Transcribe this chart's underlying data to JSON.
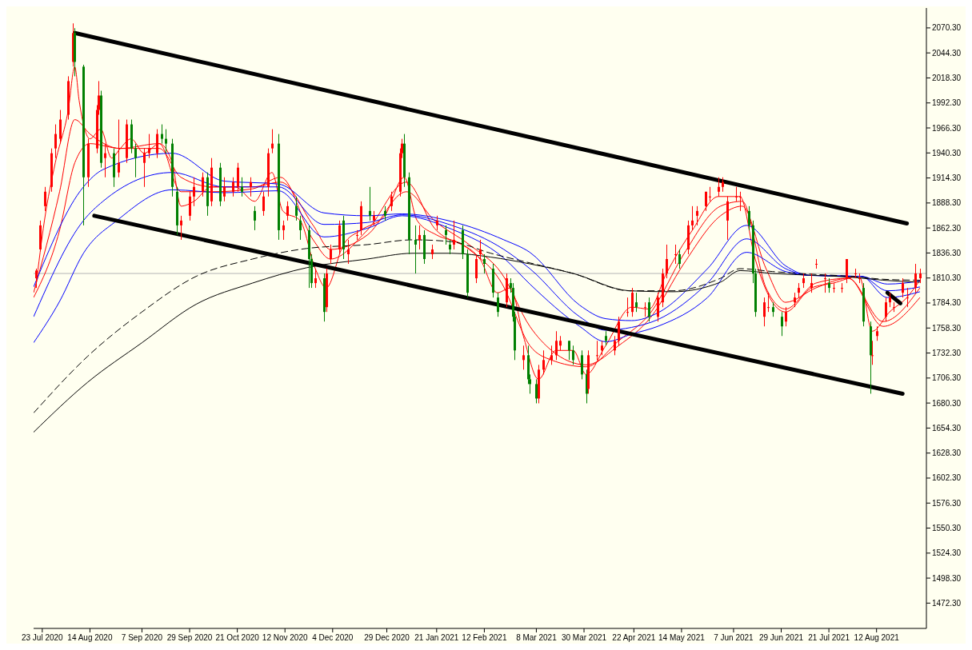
{
  "chart_data": {
    "type": "candlestick",
    "x": [
      "2020-07-20",
      "2020-07-22",
      "2020-07-24",
      "2020-07-27",
      "2020-07-29",
      "2020-07-31",
      "2020-08-04",
      "2020-08-06",
      "2020-08-07",
      "2020-08-11",
      "2020-08-13",
      "2020-08-17",
      "2020-08-18",
      "2020-08-19",
      "2020-08-21",
      "2020-08-25",
      "2020-08-27",
      "2020-08-31",
      "2020-09-02",
      "2020-09-04",
      "2020-09-08",
      "2020-09-10",
      "2020-09-14",
      "2020-09-16",
      "2020-09-18",
      "2020-09-21",
      "2020-09-23",
      "2020-09-25",
      "2020-09-29",
      "2020-10-01",
      "2020-10-05",
      "2020-10-07",
      "2020-10-09",
      "2020-10-13",
      "2020-10-15",
      "2020-10-19",
      "2020-10-21",
      "2020-10-23",
      "2020-10-27",
      "2020-10-29",
      "2020-11-02",
      "2020-11-04",
      "2020-11-06",
      "2020-11-09",
      "2020-11-11",
      "2020-11-13",
      "2020-11-17",
      "2020-11-19",
      "2020-11-23",
      "2020-11-24",
      "2020-11-26",
      "2020-11-30",
      "2020-12-01",
      "2020-12-03",
      "2020-12-07",
      "2020-12-09",
      "2020-12-11",
      "2020-12-15",
      "2020-12-17",
      "2020-12-21",
      "2020-12-23",
      "2020-12-28",
      "2020-12-31",
      "2021-01-04",
      "2021-01-05",
      "2021-01-06",
      "2021-01-08",
      "2021-01-11",
      "2021-01-13",
      "2021-01-15",
      "2021-01-19",
      "2021-01-21",
      "2021-01-25",
      "2021-01-27",
      "2021-01-29",
      "2021-02-02",
      "2021-02-04",
      "2021-02-08",
      "2021-02-10",
      "2021-02-12",
      "2021-02-16",
      "2021-02-18",
      "2021-02-22",
      "2021-02-24",
      "2021-02-25",
      "2021-02-26",
      "2021-03-02",
      "2021-03-04",
      "2021-03-05",
      "2021-03-08",
      "2021-03-09",
      "2021-03-11",
      "2021-03-15",
      "2021-03-17",
      "2021-03-19",
      "2021-03-23",
      "2021-03-25",
      "2021-03-29",
      "2021-03-31",
      "2021-04-01",
      "2021-04-05",
      "2021-04-07",
      "2021-04-09",
      "2021-04-13",
      "2021-04-15",
      "2021-04-19",
      "2021-04-21",
      "2021-04-23",
      "2021-04-27",
      "2021-04-29",
      "2021-05-03",
      "2021-05-05",
      "2021-05-07",
      "2021-05-11",
      "2021-05-13",
      "2021-05-17",
      "2021-05-19",
      "2021-05-21",
      "2021-05-25",
      "2021-05-27",
      "2021-05-31",
      "2021-06-02",
      "2021-06-04",
      "2021-06-08",
      "2021-06-10",
      "2021-06-14",
      "2021-06-16",
      "2021-06-17",
      "2021-06-21",
      "2021-06-23",
      "2021-06-25",
      "2021-06-29",
      "2021-07-01",
      "2021-07-05",
      "2021-07-07",
      "2021-07-09",
      "2021-07-13",
      "2021-07-15",
      "2021-07-19",
      "2021-07-21",
      "2021-07-23",
      "2021-07-27",
      "2021-07-29",
      "2021-08-02",
      "2021-08-04",
      "2021-08-06",
      "2021-08-09",
      "2021-08-10",
      "2021-08-12",
      "2021-08-16",
      "2021-08-18",
      "2021-08-20",
      "2021-08-24",
      "2021-08-26",
      "2021-08-30",
      "2021-09-01"
    ],
    "ohlc": [
      [
        1810,
        1820,
        1800,
        1818
      ],
      [
        1840,
        1870,
        1838,
        1865
      ],
      [
        1885,
        1905,
        1880,
        1900
      ],
      [
        1905,
        1945,
        1900,
        1940
      ],
      [
        1945,
        1970,
        1935,
        1960
      ],
      [
        1955,
        1985,
        1950,
        1975
      ],
      [
        1980,
        2020,
        1975,
        2015
      ],
      [
        2035,
        2075,
        2030,
        2065
      ],
      [
        2065,
        2070,
        2020,
        2035
      ],
      [
        2030,
        2032,
        1865,
        1915
      ],
      [
        1915,
        1955,
        1905,
        1950
      ],
      [
        1945,
        1990,
        1940,
        1985
      ],
      [
        1985,
        2015,
        1980,
        2000
      ],
      [
        2000,
        2005,
        1925,
        1930
      ],
      [
        1935,
        1950,
        1915,
        1940
      ],
      [
        1940,
        1945,
        1905,
        1915
      ],
      [
        1920,
        1975,
        1915,
        1930
      ],
      [
        1935,
        1975,
        1930,
        1970
      ],
      [
        1970,
        1975,
        1940,
        1945
      ],
      [
        1945,
        1950,
        1915,
        1935
      ],
      [
        1930,
        1945,
        1905,
        1940
      ],
      [
        1940,
        1960,
        1935,
        1945
      ],
      [
        1940,
        1965,
        1935,
        1960
      ],
      [
        1960,
        1970,
        1950,
        1955
      ],
      [
        1955,
        1965,
        1940,
        1950
      ],
      [
        1950,
        1955,
        1895,
        1905
      ],
      [
        1900,
        1905,
        1855,
        1865
      ],
      [
        1865,
        1875,
        1850,
        1870
      ],
      [
        1875,
        1900,
        1870,
        1895
      ],
      [
        1895,
        1915,
        1885,
        1905
      ],
      [
        1900,
        1920,
        1895,
        1915
      ],
      [
        1915,
        1920,
        1875,
        1885
      ],
      [
        1890,
        1935,
        1885,
        1925
      ],
      [
        1925,
        1930,
        1885,
        1890
      ],
      [
        1895,
        1915,
        1890,
        1905
      ],
      [
        1900,
        1915,
        1895,
        1910
      ],
      [
        1905,
        1930,
        1900,
        1925
      ],
      [
        1905,
        1915,
        1895,
        1900
      ],
      [
        1905,
        1915,
        1895,
        1910
      ],
      [
        1880,
        1885,
        1860,
        1870
      ],
      [
        1880,
        1900,
        1875,
        1895
      ],
      [
        1905,
        1945,
        1895,
        1940
      ],
      [
        1945,
        1965,
        1940,
        1950
      ],
      [
        1950,
        1960,
        1850,
        1860
      ],
      [
        1860,
        1870,
        1850,
        1865
      ],
      [
        1875,
        1890,
        1870,
        1885
      ],
      [
        1885,
        1895,
        1870,
        1875
      ],
      [
        1870,
        1875,
        1850,
        1860
      ],
      [
        1860,
        1865,
        1800,
        1830
      ],
      [
        1830,
        1835,
        1800,
        1805
      ],
      [
        1805,
        1820,
        1800,
        1810
      ],
      [
        1810,
        1815,
        1765,
        1775
      ],
      [
        1780,
        1820,
        1775,
        1815
      ],
      [
        1830,
        1845,
        1825,
        1840
      ],
      [
        1840,
        1870,
        1835,
        1865
      ],
      [
        1870,
        1875,
        1830,
        1840
      ],
      [
        1835,
        1850,
        1825,
        1840
      ],
      [
        1855,
        1860,
        1850,
        1855
      ],
      [
        1860,
        1890,
        1855,
        1885
      ],
      [
        1880,
        1905,
        1870,
        1875
      ],
      [
        1870,
        1880,
        1865,
        1875
      ],
      [
        1880,
        1885,
        1870,
        1875
      ],
      [
        1885,
        1900,
        1880,
        1895
      ],
      [
        1900,
        1945,
        1895,
        1940
      ],
      [
        1940,
        1955,
        1935,
        1950
      ],
      [
        1950,
        1960,
        1905,
        1915
      ],
      [
        1915,
        1920,
        1835,
        1850
      ],
      [
        1850,
        1865,
        1815,
        1845
      ],
      [
        1850,
        1865,
        1840,
        1855
      ],
      [
        1855,
        1860,
        1825,
        1830
      ],
      [
        1835,
        1845,
        1830,
        1840
      ],
      [
        1865,
        1875,
        1860,
        1870
      ],
      [
        1860,
        1865,
        1845,
        1855
      ],
      [
        1845,
        1850,
        1835,
        1840
      ],
      [
        1845,
        1870,
        1840,
        1850
      ],
      [
        1860,
        1865,
        1830,
        1835
      ],
      [
        1835,
        1840,
        1790,
        1795
      ],
      [
        1810,
        1835,
        1805,
        1830
      ],
      [
        1835,
        1850,
        1830,
        1840
      ],
      [
        1830,
        1835,
        1815,
        1825
      ],
      [
        1820,
        1825,
        1790,
        1795
      ],
      [
        1790,
        1795,
        1770,
        1775
      ],
      [
        1785,
        1815,
        1780,
        1810
      ],
      [
        1805,
        1810,
        1795,
        1800
      ],
      [
        1800,
        1805,
        1765,
        1770
      ],
      [
        1770,
        1775,
        1725,
        1735
      ],
      [
        1725,
        1740,
        1715,
        1730
      ],
      [
        1730,
        1740,
        1700,
        1705
      ],
      [
        1705,
        1710,
        1690,
        1700
      ],
      [
        1700,
        1705,
        1680,
        1685
      ],
      [
        1685,
        1720,
        1680,
        1715
      ],
      [
        1715,
        1735,
        1710,
        1725
      ],
      [
        1725,
        1740,
        1720,
        1730
      ],
      [
        1730,
        1755,
        1725,
        1745
      ],
      [
        1740,
        1750,
        1735,
        1745
      ],
      [
        1745,
        1745,
        1725,
        1735
      ],
      [
        1735,
        1740,
        1720,
        1725
      ],
      [
        1730,
        1735,
        1705,
        1710
      ],
      [
        1710,
        1715,
        1680,
        1690
      ],
      [
        1695,
        1735,
        1690,
        1730
      ],
      [
        1730,
        1745,
        1725,
        1730
      ],
      [
        1735,
        1745,
        1730,
        1740
      ],
      [
        1750,
        1755,
        1740,
        1745
      ],
      [
        1735,
        1750,
        1730,
        1745
      ],
      [
        1745,
        1770,
        1740,
        1765
      ],
      [
        1775,
        1790,
        1770,
        1775
      ],
      [
        1775,
        1800,
        1770,
        1795
      ],
      [
        1785,
        1795,
        1775,
        1780
      ],
      [
        1780,
        1785,
        1770,
        1780
      ],
      [
        1785,
        1790,
        1765,
        1770
      ],
      [
        1770,
        1795,
        1765,
        1790
      ],
      [
        1785,
        1820,
        1780,
        1815
      ],
      [
        1815,
        1845,
        1810,
        1830
      ],
      [
        1835,
        1845,
        1825,
        1835
      ],
      [
        1835,
        1840,
        1820,
        1825
      ],
      [
        1840,
        1870,
        1835,
        1865
      ],
      [
        1865,
        1885,
        1860,
        1870
      ],
      [
        1875,
        1885,
        1865,
        1880
      ],
      [
        1885,
        1900,
        1880,
        1900
      ],
      [
        1895,
        1905,
        1890,
        1895
      ],
      [
        1900,
        1915,
        1895,
        1905
      ],
      [
        1905,
        1915,
        1900,
        1910
      ],
      [
        1870,
        1895,
        1850,
        1890
      ],
      [
        1895,
        1905,
        1890,
        1895
      ],
      [
        1895,
        1900,
        1880,
        1895
      ],
      [
        1880,
        1885,
        1860,
        1865
      ],
      [
        1865,
        1870,
        1805,
        1815
      ],
      [
        1815,
        1820,
        1770,
        1775
      ],
      [
        1770,
        1790,
        1760,
        1785
      ],
      [
        1780,
        1795,
        1775,
        1780
      ],
      [
        1780,
        1785,
        1770,
        1775
      ],
      [
        1770,
        1775,
        1750,
        1760
      ],
      [
        1765,
        1780,
        1760,
        1775
      ],
      [
        1785,
        1795,
        1780,
        1790
      ],
      [
        1795,
        1805,
        1790,
        1800
      ],
      [
        1805,
        1815,
        1800,
        1810
      ],
      [
        1800,
        1815,
        1795,
        1805
      ],
      [
        1825,
        1830,
        1820,
        1825
      ],
      [
        1810,
        1815,
        1795,
        1810
      ],
      [
        1805,
        1810,
        1795,
        1800
      ],
      [
        1800,
        1805,
        1795,
        1800
      ],
      [
        1800,
        1805,
        1795,
        1800
      ],
      [
        1810,
        1830,
        1805,
        1830
      ],
      [
        1815,
        1820,
        1810,
        1815
      ],
      [
        1810,
        1815,
        1805,
        1810
      ],
      [
        1800,
        1805,
        1760,
        1765
      ],
      [
        1760,
        1765,
        1690,
        1730
      ],
      [
        1730,
        1745,
        1720,
        1730
      ],
      [
        1750,
        1760,
        1745,
        1755
      ],
      [
        1770,
        1790,
        1765,
        1785
      ],
      [
        1785,
        1795,
        1780,
        1790
      ],
      [
        1780,
        1785,
        1775,
        1780
      ],
      [
        1795,
        1810,
        1790,
        1805
      ],
      [
        1790,
        1800,
        1780,
        1790
      ],
      [
        1800,
        1825,
        1795,
        1815
      ],
      [
        1810,
        1820,
        1805,
        1815
      ]
    ],
    "colors": [
      "#ff0000",
      "#ff0000",
      "#ff0000",
      "#ff0000",
      "#ff0000",
      "#ff0000",
      "#ff0000",
      "#ff0000",
      "#008000",
      "#008000",
      "#ff0000",
      "#ff0000",
      "#ff0000",
      "#008000",
      "#ff0000",
      "#008000",
      "#ff0000",
      "#ff0000",
      "#008000",
      "#008000",
      "#ff0000",
      "#ff0000",
      "#ff0000",
      "#008000",
      "#008000",
      "#008000",
      "#008000",
      "#ff0000",
      "#ff0000",
      "#ff0000",
      "#ff0000",
      "#008000",
      "#ff0000",
      "#008000",
      "#ff0000",
      "#ff0000",
      "#ff0000",
      "#008000",
      "#ff0000",
      "#008000",
      "#ff0000",
      "#ff0000",
      "#ff0000",
      "#008000",
      "#ff0000",
      "#ff0000",
      "#008000",
      "#008000",
      "#008000",
      "#008000",
      "#ff0000",
      "#008000",
      "#ff0000",
      "#ff0000",
      "#ff0000",
      "#008000",
      "#ff0000",
      "#ff0000",
      "#ff0000",
      "#008000",
      "#ff0000",
      "#008000",
      "#ff0000",
      "#ff0000",
      "#ff0000",
      "#008000",
      "#008000",
      "#008000",
      "#ff0000",
      "#008000",
      "#ff0000",
      "#ff0000",
      "#008000",
      "#008000",
      "#ff0000",
      "#008000",
      "#008000",
      "#ff0000",
      "#ff0000",
      "#008000",
      "#008000",
      "#008000",
      "#ff0000",
      "#008000",
      "#008000",
      "#008000",
      "#ff0000",
      "#008000",
      "#008000",
      "#008000",
      "#ff0000",
      "#ff0000",
      "#ff0000",
      "#ff0000",
      "#ff0000",
      "#008000",
      "#008000",
      "#008000",
      "#008000",
      "#ff0000",
      "#ff0000",
      "#ff0000",
      "#008000",
      "#ff0000",
      "#ff0000",
      "#ff0000",
      "#ff0000",
      "#008000",
      "#ff0000",
      "#008000",
      "#ff0000",
      "#ff0000",
      "#ff0000",
      "#ff0000",
      "#008000",
      "#ff0000",
      "#ff0000",
      "#ff0000",
      "#ff0000",
      "#ff0000",
      "#ff0000",
      "#ff0000",
      "#ff0000",
      "#ff0000",
      "#ff0000",
      "#008000",
      "#008000",
      "#008000",
      "#ff0000",
      "#ff0000",
      "#008000",
      "#008000",
      "#ff0000",
      "#ff0000",
      "#ff0000",
      "#ff0000",
      "#ff0000",
      "#ff0000",
      "#ff0000",
      "#008000",
      "#ff0000",
      "#ff0000",
      "#ff0000",
      "#ff0000",
      "#ff0000",
      "#008000",
      "#008000",
      "#ff0000",
      "#ff0000",
      "#ff0000",
      "#ff0000",
      "#ff0000",
      "#ff0000",
      "#ff0000",
      "#ff0000",
      "#ff0000"
    ],
    "series": [
      {
        "type": "line",
        "color": "#ff0000",
        "x": [
          "2020-07-20",
          "2020-07-24",
          "2020-07-29",
          "2020-08-04",
          "2020-08-07",
          "2020-08-09",
          "2020-08-14",
          "2020-08-19",
          "2020-08-24",
          "2020-08-28",
          "2020-09-02",
          "2020-09-08",
          "2020-09-15",
          "2020-09-21",
          "2020-09-25",
          "2020-10-01",
          "2020-10-09",
          "2020-10-20",
          "2020-10-29",
          "2020-11-06",
          "2020-11-11",
          "2020-11-19",
          "2020-11-26",
          "2020-12-01",
          "2020-12-09",
          "2020-12-17",
          "2020-12-28",
          "2021-01-06",
          "2021-01-12",
          "2021-01-21",
          "2021-02-02",
          "2021-02-10",
          "2021-02-18",
          "2021-02-24",
          "2021-03-02",
          "2021-03-09",
          "2021-03-17",
          "2021-03-25",
          "2021-03-31",
          "2021-04-09",
          "2021-04-21",
          "2021-04-29",
          "2021-05-07",
          "2021-05-19",
          "2021-05-31",
          "2021-06-10",
          "2021-06-17",
          "2021-06-25",
          "2021-07-01",
          "2021-07-13",
          "2021-07-23",
          "2021-08-04",
          "2021-08-10",
          "2021-08-18",
          "2021-08-26",
          "2021-09-01"
        ],
        "values": [
          1800,
          1870,
          1930,
          1985,
          2030,
          1995,
          1955,
          1965,
          1935,
          1945,
          1955,
          1940,
          1950,
          1930,
          1885,
          1890,
          1905,
          1905,
          1890,
          1920,
          1880,
          1870,
          1820,
          1800,
          1845,
          1860,
          1875,
          1915,
          1870,
          1855,
          1845,
          1830,
          1795,
          1800,
          1750,
          1705,
          1735,
          1735,
          1710,
          1740,
          1780,
          1778,
          1815,
          1860,
          1895,
          1895,
          1830,
          1785,
          1775,
          1800,
          1805,
          1812,
          1755,
          1775,
          1790,
          1808
        ]
      },
      {
        "type": "line",
        "color": "#ff0000",
        "x": [
          "2020-07-19",
          "2020-07-31",
          "2020-08-07",
          "2020-08-14",
          "2020-08-28",
          "2020-09-15",
          "2020-09-25",
          "2020-10-10",
          "2020-10-28",
          "2020-11-10",
          "2020-11-25",
          "2020-12-03",
          "2020-12-20",
          "2021-01-07",
          "2021-01-20",
          "2021-02-05",
          "2021-02-20",
          "2021-03-05",
          "2021-03-15",
          "2021-03-31",
          "2021-04-15",
          "2021-04-30",
          "2021-05-15",
          "2021-06-01",
          "2021-06-11",
          "2021-06-22",
          "2021-07-01",
          "2021-07-15",
          "2021-07-30",
          "2021-08-15",
          "2021-09-01"
        ],
        "values": [
          1795,
          1900,
          1975,
          1960,
          1945,
          1950,
          1900,
          1900,
          1903,
          1915,
          1850,
          1830,
          1860,
          1910,
          1862,
          1840,
          1805,
          1740,
          1725,
          1718,
          1745,
          1775,
          1835,
          1885,
          1890,
          1800,
          1778,
          1805,
          1810,
          1765,
          1800
        ]
      },
      {
        "type": "line",
        "color": "#ff0000",
        "x": [
          "2020-07-19",
          "2020-07-31",
          "2020-08-07",
          "2020-08-14",
          "2020-08-28",
          "2020-09-15",
          "2020-09-25",
          "2020-10-10",
          "2020-10-28",
          "2020-11-10",
          "2020-11-25",
          "2020-12-03",
          "2020-12-20",
          "2021-01-07",
          "2021-01-20",
          "2021-02-05",
          "2021-02-20",
          "2021-03-05",
          "2021-03-15",
          "2021-03-31",
          "2021-04-15",
          "2021-04-30",
          "2021-05-15",
          "2021-06-01",
          "2021-06-11",
          "2021-06-22",
          "2021-07-01",
          "2021-07-15",
          "2021-07-30",
          "2021-08-15",
          "2021-09-01"
        ],
        "values": [
          1790,
          1860,
          1930,
          1950,
          1945,
          1945,
          1915,
          1905,
          1905,
          1910,
          1865,
          1840,
          1855,
          1900,
          1870,
          1845,
          1815,
          1760,
          1735,
          1720,
          1740,
          1770,
          1825,
          1875,
          1885,
          1820,
          1785,
          1800,
          1810,
          1760,
          1790
        ]
      },
      {
        "type": "line",
        "color": "#0000ff",
        "x": [
          "2020-07-19",
          "2020-08-11",
          "2020-08-20",
          "2020-09-21",
          "2020-10-15",
          "2020-11-09",
          "2020-11-30",
          "2020-12-20",
          "2021-01-05",
          "2021-01-28",
          "2021-02-21",
          "2021-03-05",
          "2021-03-28",
          "2021-04-09",
          "2021-04-21",
          "2021-05-03",
          "2021-05-26",
          "2021-06-13",
          "2021-07-01",
          "2021-07-12",
          "2021-08-05",
          "2021-08-17",
          "2021-09-01"
        ],
        "values": [
          1801,
          1905,
          1923,
          1940,
          1911,
          1908,
          1878,
          1875,
          1877,
          1869,
          1850,
          1837,
          1782,
          1768,
          1766,
          1774,
          1820,
          1865,
          1823,
          1813,
          1812,
          1804,
          1807
        ]
      },
      {
        "type": "line",
        "color": "#0000ff",
        "x": [
          "2020-07-19",
          "2020-08-11",
          "2020-08-20",
          "2020-09-21",
          "2020-10-15",
          "2020-11-09",
          "2020-11-30",
          "2020-12-20",
          "2021-01-05",
          "2021-01-28",
          "2021-02-21",
          "2021-03-05",
          "2021-03-28",
          "2021-04-09",
          "2021-04-21",
          "2021-05-03",
          "2021-05-26",
          "2021-06-13",
          "2021-07-01",
          "2021-07-12",
          "2021-08-05",
          "2021-08-17",
          "2021-09-01"
        ],
        "values": [
          1770,
          1870,
          1890,
          1920,
          1905,
          1905,
          1866,
          1868,
          1876,
          1865,
          1840,
          1820,
          1770,
          1756,
          1759,
          1767,
          1805,
          1851,
          1820,
          1813,
          1812,
          1797,
          1801
        ]
      },
      {
        "type": "line",
        "color": "#0000ff",
        "x": [
          "2020-07-19",
          "2020-07-31",
          "2020-08-11",
          "2020-08-27",
          "2020-09-21",
          "2020-10-15",
          "2020-11-09",
          "2020-11-30",
          "2020-12-20",
          "2021-01-05",
          "2021-01-28",
          "2021-02-21",
          "2021-03-05",
          "2021-03-28",
          "2021-04-09",
          "2021-04-21",
          "2021-05-03",
          "2021-05-26",
          "2021-06-13",
          "2021-07-01",
          "2021-07-12",
          "2021-08-05",
          "2021-08-17",
          "2021-09-01"
        ],
        "values": [
          1743,
          1786,
          1836,
          1871,
          1902,
          1899,
          1901,
          1853,
          1862,
          1875,
          1861,
          1831,
          1804,
          1760,
          1744,
          1752,
          1760,
          1790,
          1837,
          1817,
          1813,
          1812,
          1790,
          1796
        ]
      },
      {
        "type": "line",
        "color": "#000000",
        "line_style": "dashed",
        "x": [
          "2020-07-19",
          "2020-08-13",
          "2020-09-07",
          "2020-10-02",
          "2020-10-28",
          "2020-11-22",
          "2020-12-20",
          "2021-01-10",
          "2021-01-28",
          "2021-02-15",
          "2021-03-05",
          "2021-03-25",
          "2021-04-20",
          "2021-05-10",
          "2021-06-01",
          "2021-06-10",
          "2021-06-25",
          "2021-07-15",
          "2021-08-01",
          "2021-08-15",
          "2021-09-01"
        ],
        "values": [
          1670,
          1729,
          1775,
          1812,
          1830,
          1841,
          1845,
          1850,
          1848,
          1836,
          1826,
          1815,
          1797,
          1797,
          1810,
          1820,
          1817,
          1814,
          1812,
          1809,
          1808
        ]
      },
      {
        "type": "line",
        "color": "#000000",
        "x": [
          "2020-07-19",
          "2020-08-13",
          "2020-09-07",
          "2020-10-02",
          "2020-10-28",
          "2020-11-22",
          "2020-12-20",
          "2021-01-10",
          "2021-01-28",
          "2021-02-15",
          "2021-03-05",
          "2021-03-25",
          "2021-04-20",
          "2021-05-10",
          "2021-06-01",
          "2021-06-10",
          "2021-06-25",
          "2021-07-15",
          "2021-08-01",
          "2021-08-15",
          "2021-09-01"
        ],
        "values": [
          1650,
          1702,
          1743,
          1783,
          1805,
          1821,
          1830,
          1836,
          1836,
          1832,
          1825,
          1815,
          1797,
          1796,
          1806,
          1818,
          1815,
          1813,
          1811,
          1808,
          1806
        ]
      },
      {
        "type": "line",
        "color": "#000000",
        "x": [
          "2020-08-07",
          "2021-08-26"
        ],
        "values": [
          2065,
          1867
        ]
      },
      {
        "type": "line",
        "color": "#000000",
        "x": [
          "2020-08-16",
          "2021-08-24"
        ],
        "values": [
          1875,
          1690
        ]
      },
      {
        "type": "line",
        "color": "#000000",
        "x": [
          "2021-08-17",
          "2021-08-23"
        ],
        "values": [
          1795,
          1784
        ]
      }
    ],
    "ref_lines": [
      {
        "axis": "y",
        "value": 1815,
        "color": "#b4b4b4"
      }
    ],
    "xlim": [
      "2020-07-19",
      "2021-09-04"
    ],
    "ylim": [
      1446,
      2091
    ],
    "xticks": [
      {
        "value": "2020-07-23",
        "label": "23 Jul 2020"
      },
      {
        "value": "2020-08-14",
        "label": "14 Aug 2020"
      },
      {
        "value": "2020-09-07",
        "label": "7 Sep 2020"
      },
      {
        "value": "2020-09-29",
        "label": "29 Sep 2020"
      },
      {
        "value": "2020-10-21",
        "label": "21 Oct 2020"
      },
      {
        "value": "2020-11-12",
        "label": "12 Nov 2020"
      },
      {
        "value": "2020-12-04",
        "label": "4 Dec 2020"
      },
      {
        "value": "2020-12-29",
        "label": "29 Dec 2020"
      },
      {
        "value": "2021-01-21",
        "label": "21 Jan 2021"
      },
      {
        "value": "2021-02-12",
        "label": "12 Feb 2021"
      },
      {
        "value": "2021-03-08",
        "label": "8 Mar 2021"
      },
      {
        "value": "2021-03-30",
        "label": "30 Mar 2021"
      },
      {
        "value": "2021-04-22",
        "label": "22 Apr 2021"
      },
      {
        "value": "2021-05-14",
        "label": "14 May 2021"
      },
      {
        "value": "2021-06-07",
        "label": "7 Jun 2021"
      },
      {
        "value": "2021-06-29",
        "label": "29 Jun 2021"
      },
      {
        "value": "2021-07-21",
        "label": "21 Jul 2021"
      },
      {
        "value": "2021-08-12",
        "label": "12 Aug 2021"
      }
    ],
    "yticks": [
      {
        "value": 1472.3,
        "label": "1472.30"
      },
      {
        "value": 1498.3,
        "label": "1498.30"
      },
      {
        "value": 1524.3,
        "label": "1524.30"
      },
      {
        "value": 1550.3,
        "label": "1550.30"
      },
      {
        "value": 1576.3,
        "label": "1576.30"
      },
      {
        "value": 1602.3,
        "label": "1602.30"
      },
      {
        "value": 1628.3,
        "label": "1628.30"
      },
      {
        "value": 1654.3,
        "label": "1654.30"
      },
      {
        "value": 1680.3,
        "label": "1680.30"
      },
      {
        "value": 1706.3,
        "label": "1706.30"
      },
      {
        "value": 1732.3,
        "label": "1732.30"
      },
      {
        "value": 1758.3,
        "label": "1758.30"
      },
      {
        "value": 1784.3,
        "label": "1784.30"
      },
      {
        "value": 1810.3,
        "label": "1810.30"
      },
      {
        "value": 1836.3,
        "label": "1836.30"
      },
      {
        "value": 1862.3,
        "label": "1862.30"
      },
      {
        "value": 1888.3,
        "label": "1888.30"
      },
      {
        "value": 1914.3,
        "label": "1914.30"
      },
      {
        "value": 1940.3,
        "label": "1940.30"
      },
      {
        "value": 1966.3,
        "label": "1966.30"
      },
      {
        "value": 1992.3,
        "label": "1992.30"
      },
      {
        "value": 2018.3,
        "label": "2018.30"
      },
      {
        "value": 2044.3,
        "label": "2044.30"
      },
      {
        "value": 2070.3,
        "label": "2070.30"
      }
    ]
  }
}
